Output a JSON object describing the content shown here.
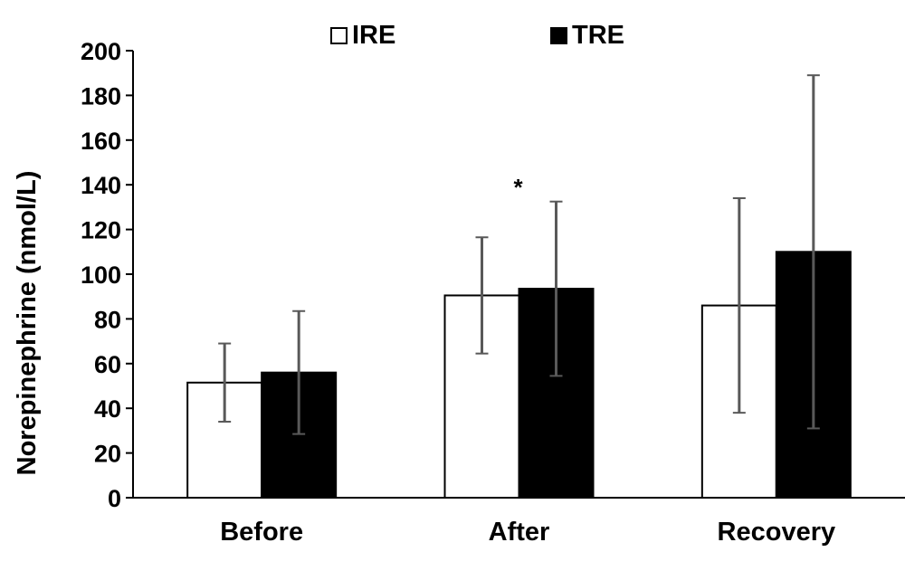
{
  "chart_data": {
    "type": "bar",
    "title": "",
    "xlabel": "",
    "ylabel": "Norepinephrine (nmol/L)",
    "ylim": [
      0,
      200
    ],
    "yticks": [
      0,
      20,
      40,
      60,
      80,
      100,
      120,
      140,
      160,
      180,
      200
    ],
    "categories": [
      "Before",
      "After",
      "Recovery"
    ],
    "legend_position": "top",
    "grid": false,
    "series": [
      {
        "name": "IRE",
        "values": [
          51.5,
          90.5,
          86
        ],
        "errors": [
          17.5,
          26,
          48
        ],
        "fill": "#ffffff",
        "stroke": "#000000"
      },
      {
        "name": "TRE",
        "values": [
          56,
          93.5,
          110
        ],
        "errors": [
          27.5,
          39,
          79
        ],
        "fill": "#000000",
        "stroke": "#000000"
      }
    ],
    "error_bar_color": "#595959",
    "annotations": [
      {
        "text": "*",
        "category": "After",
        "series": "TRE",
        "y": 140
      }
    ]
  }
}
